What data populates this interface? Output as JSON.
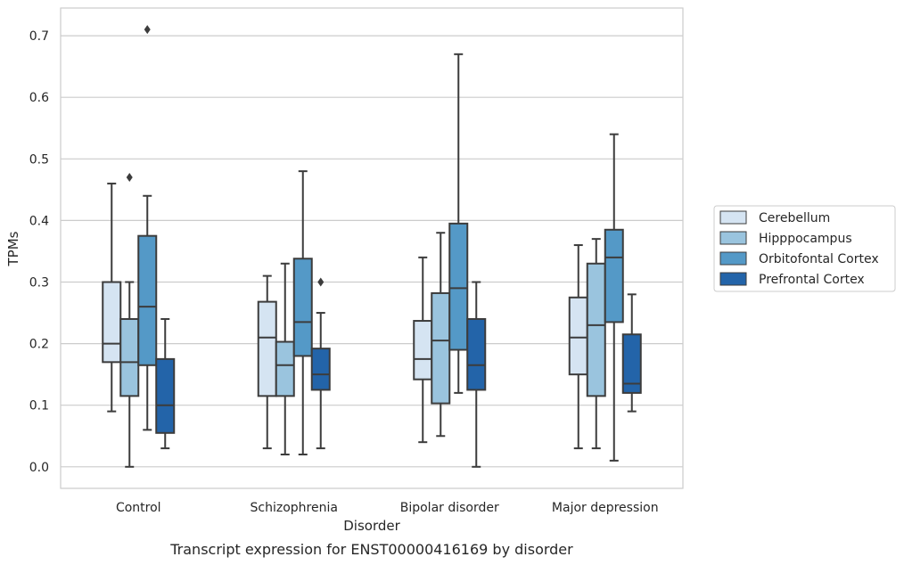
{
  "chart_data": {
    "type": "box",
    "categories": [
      "Control",
      "Schizophrenia",
      "Bipolar disorder",
      "Major depression"
    ],
    "xlabel": "Disorder",
    "ylabel": "TPMs",
    "caption": "Transcript expression for ENST00000416169 by disorder",
    "ylim": [
      -0.035,
      0.745
    ],
    "yticks": [
      "0.0",
      "0.1",
      "0.2",
      "0.3",
      "0.4",
      "0.5",
      "0.6",
      "0.7"
    ],
    "grid": "horizontal",
    "legend_position": "right",
    "series": [
      {
        "name": "Cerebellum",
        "color": "#d5e4f2",
        "boxes": [
          {
            "whislo": 0.09,
            "q1": 0.17,
            "med": 0.2,
            "q3": 0.3,
            "whishi": 0.46,
            "fliers": []
          },
          {
            "whislo": 0.03,
            "q1": 0.115,
            "med": 0.21,
            "q3": 0.268,
            "whishi": 0.31,
            "fliers": []
          },
          {
            "whislo": 0.04,
            "q1": 0.142,
            "med": 0.175,
            "q3": 0.237,
            "whishi": 0.34,
            "fliers": []
          },
          {
            "whislo": 0.03,
            "q1": 0.15,
            "med": 0.21,
            "q3": 0.275,
            "whishi": 0.36,
            "fliers": []
          }
        ]
      },
      {
        "name": "Hipppocampus",
        "color": "#9ac4de",
        "boxes": [
          {
            "whislo": 0.0,
            "q1": 0.115,
            "med": 0.17,
            "q3": 0.24,
            "whishi": 0.3,
            "fliers": [
              0.47
            ]
          },
          {
            "whislo": 0.02,
            "q1": 0.115,
            "med": 0.165,
            "q3": 0.203,
            "whishi": 0.33,
            "fliers": []
          },
          {
            "whislo": 0.05,
            "q1": 0.103,
            "med": 0.205,
            "q3": 0.282,
            "whishi": 0.38,
            "fliers": []
          },
          {
            "whislo": 0.03,
            "q1": 0.115,
            "med": 0.23,
            "q3": 0.33,
            "whishi": 0.37,
            "fliers": []
          }
        ]
      },
      {
        "name": "Orbitofontal Cortex",
        "color": "#5499c7",
        "boxes": [
          {
            "whislo": 0.06,
            "q1": 0.165,
            "med": 0.26,
            "q3": 0.375,
            "whishi": 0.44,
            "fliers": [
              0.71
            ]
          },
          {
            "whislo": 0.02,
            "q1": 0.18,
            "med": 0.235,
            "q3": 0.338,
            "whishi": 0.48,
            "fliers": []
          },
          {
            "whislo": 0.12,
            "q1": 0.19,
            "med": 0.29,
            "q3": 0.395,
            "whishi": 0.67,
            "fliers": []
          },
          {
            "whislo": 0.01,
            "q1": 0.235,
            "med": 0.34,
            "q3": 0.385,
            "whishi": 0.54,
            "fliers": []
          }
        ]
      },
      {
        "name": "Prefrontal Cortex",
        "color": "#2364a9",
        "boxes": [
          {
            "whislo": 0.03,
            "q1": 0.055,
            "med": 0.1,
            "q3": 0.175,
            "whishi": 0.24,
            "fliers": []
          },
          {
            "whislo": 0.03,
            "q1": 0.125,
            "med": 0.15,
            "q3": 0.192,
            "whishi": 0.25,
            "fliers": [
              0.3
            ]
          },
          {
            "whislo": 0.0,
            "q1": 0.125,
            "med": 0.165,
            "q3": 0.24,
            "whishi": 0.3,
            "fliers": []
          },
          {
            "whislo": 0.09,
            "q1": 0.12,
            "med": 0.135,
            "q3": 0.215,
            "whishi": 0.28,
            "fliers": []
          }
        ]
      }
    ],
    "style": {
      "line_color": "#3c3c3c",
      "grid_color": "#cccccc",
      "frame_color": "#cccccc"
    }
  }
}
